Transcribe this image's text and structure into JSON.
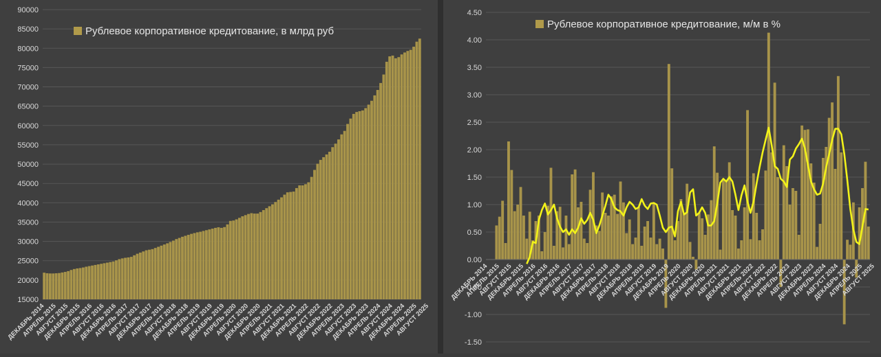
{
  "charts": [
    {
      "type": "bar",
      "title": "",
      "legend": {
        "label": "Рублевое корпоративное кредитование, в млрд руб",
        "placement": "top-center",
        "color": "#b09a4a"
      },
      "bar_color": "#a8944a",
      "xlabel": "",
      "ylabel": "",
      "ylim": [
        15000,
        90000
      ],
      "ystep": 5000,
      "grid": true,
      "start": "2014-12",
      "tick_labels": [
        "ДЕКАБРЬ 2014",
        "АПРЕЛЬ 2015",
        "АВГУСТ 2015",
        "ДЕКАБРЬ 2015",
        "АПРЕЛЬ 2016",
        "АВГУСТ 2016",
        "ДЕКАБРЬ 2016",
        "АПРЕЛЬ 2017",
        "АВГУСТ 2017",
        "ДЕКАБРЬ 2017",
        "АПРЕЛЬ 2018",
        "АВГУСТ 2018",
        "ДЕКАБРЬ 2018",
        "АПРЕЛЬ 2019",
        "АВГУСТ 2019",
        "ДЕКАБРЬ 2019",
        "АПРЕЛЬ 2020",
        "АВГУСТ 2020",
        "ДЕКАБРЬ 2020",
        "АПРЕЛЬ 2021",
        "АВГУСТ 2021",
        "ДЕКАБРЬ 2021",
        "АПРЕЛЬ 2022",
        "АВГУСТ 2022",
        "ДЕКАБРЬ 2022",
        "АПРЕЛЬ 2023",
        "АВГУСТ 2023",
        "ДЕКАБРЬ 2023",
        "АПРЕЛЬ 2024",
        "АВГУСТ 2024",
        "ДЕКАБРЬ 2024",
        "АПРЕЛЬ 2025",
        "АВГУСТ 2025"
      ],
      "values": [
        21900,
        21750,
        21700,
        21700,
        21750,
        21800,
        21950,
        22100,
        22300,
        22600,
        22850,
        23000,
        23100,
        23250,
        23450,
        23600,
        23750,
        23900,
        24050,
        24200,
        24350,
        24500,
        24650,
        24800,
        25100,
        25400,
        25600,
        25750,
        25850,
        26000,
        26400,
        26800,
        27100,
        27400,
        27700,
        27850,
        28000,
        28300,
        28600,
        28900,
        29200,
        29500,
        29850,
        30200,
        30600,
        30900,
        31200,
        31450,
        31700,
        31950,
        32150,
        32350,
        32500,
        32700,
        32900,
        33100,
        33300,
        33500,
        33650,
        33500,
        33700,
        34400,
        35300,
        35400,
        35700,
        36100,
        36500,
        36800,
        37100,
        37300,
        37200,
        37200,
        37600,
        38100,
        38600,
        39100,
        39600,
        40200,
        40800,
        41400,
        42100,
        42700,
        42800,
        42900,
        43800,
        44500,
        44500,
        44800,
        45300,
        46700,
        48500,
        50100,
        51100,
        51800,
        52500,
        53200,
        54400,
        55300,
        56400,
        57700,
        58600,
        60400,
        61800,
        63000,
        63500,
        63700,
        63900,
        64500,
        65400,
        66400,
        67800,
        69200,
        71000,
        73200,
        76500,
        77900,
        78100,
        77400,
        77700,
        78400,
        78900,
        79300,
        79600,
        80400,
        81700,
        82500
      ]
    },
    {
      "type": "bar+line",
      "title": "",
      "legend": {
        "label": "Рублевое корпоративное кредитование, м/м в %",
        "placement": "top-center",
        "color": "#b09a4a"
      },
      "bar_color": "#a8944a",
      "line_color": "#f2f21a",
      "xlabel": "",
      "ylabel": "",
      "ylim": [
        -1.5,
        4.5
      ],
      "ystep": 0.5,
      "grid": true,
      "start": "2014-12",
      "tick_labels": [
        "ДЕКАБРЬ 2014",
        "АПРЕЛЬ 2015",
        "АВГУСТ 2015",
        "ДЕКАБРЬ 2015",
        "АПРЕЛЬ 2016",
        "АВГУСТ 2016",
        "ДЕКАБРЬ 2016",
        "АПРЕЛЬ 2017",
        "АВГУСТ 2017",
        "ДЕКАБРЬ 2017",
        "АПРЕЛЬ 2018",
        "АВГУСТ 2018",
        "ДЕКАБРЬ 2018",
        "АПРЕЛЬ 2019",
        "АВГУСТ 2019",
        "ДЕКАБРЬ 2019",
        "АПРЕЛЬ 2020",
        "АВГУСТ 2020",
        "ДЕКАБРЬ 2020",
        "АПРЕЛЬ 2021",
        "АВГУСТ 2021",
        "ДЕКАБРЬ 2021",
        "АПРЕЛЬ 2022",
        "АВГУСТ 2022",
        "ДЕКАБРЬ 2022",
        "АПРЕЛЬ 2023",
        "АВГУСТ 2023",
        "ДЕКАБРЬ 2023",
        "АПРЕЛЬ 2024",
        "АВГУСТ 2024",
        "ДЕКАБРЬ 2024",
        "АПРЕЛЬ 2025",
        "АВГУСТ 2025"
      ],
      "bars": [
        0,
        0,
        0,
        0.62,
        0.78,
        1.07,
        0.3,
        2.15,
        1.63,
        0.88,
        1.0,
        1.32,
        0.8,
        0.38,
        0.87,
        0.35,
        0.7,
        0.8,
        0.15,
        0.5,
        0.98,
        1.67,
        0.25,
        0.88,
        0.96,
        0.22,
        0.8,
        0.28,
        1.55,
        1.64,
        0.95,
        1.05,
        0.38,
        0.3,
        1.27,
        1.59,
        0.62,
        0.52,
        1.22,
        0.85,
        0.8,
        1.15,
        1.18,
        0.83,
        1.42,
        1.04,
        0.48,
        0.73,
        0.28,
        0.4,
        0.95,
        0.25,
        0.6,
        0.7,
        0.4,
        1.03,
        0.28,
        0.38,
        0.2,
        -0.88,
        3.56,
        1.66,
        0.35,
        0.7,
        1.1,
        0.82,
        1.38,
        0.32,
        0.05,
        -0.18,
        0.85,
        0.75,
        0.45,
        0.82,
        1.08,
        2.06,
        1.58,
        0.18,
        1.45,
        1.44,
        1.77,
        0.9,
        0.8,
        0.2,
        0.35,
        0.95,
        2.72,
        0.37,
        1.57,
        0.85,
        0.35,
        0.55,
        1.62,
        4.13,
        1.95,
        3.22,
        1.5,
        -0.5,
        2.08,
        1.7,
        1.0,
        1.3,
        1.25,
        0.45,
        2.44,
        2.36,
        2.37,
        1.75,
        1.4,
        0.23,
        0.65,
        1.85,
        2.05,
        2.58,
        2.86,
        1.65,
        3.34,
        1.95,
        -1.18,
        0.36,
        0.27,
        1.04,
        -0.33,
        0.95,
        1.3,
        1.78,
        0.6
      ],
      "trend": [
        -0.08,
        0.05,
        0.32,
        0.3,
        0.72,
        0.9,
        1.02,
        0.82,
        0.9,
        1.0,
        0.75,
        0.6,
        0.5,
        0.55,
        0.45,
        0.55,
        0.48,
        0.58,
        0.75,
        0.65,
        0.72,
        0.85,
        0.72,
        0.48,
        0.62,
        0.8,
        0.98,
        1.18,
        1.1,
        0.95,
        0.9,
        0.88,
        0.8,
        0.95,
        1.05,
        1.0,
        0.92,
        0.95,
        1.1,
        0.98,
        0.92,
        1.02,
        1.03,
        1.0,
        0.8,
        0.58,
        0.5,
        0.58,
        0.6,
        0.42,
        0.88,
        1.05,
        0.82,
        0.86,
        1.22,
        1.28,
        0.8,
        0.85,
        0.95,
        0.85,
        0.62,
        0.62,
        0.7,
        1.02,
        1.4,
        1.47,
        1.42,
        1.5,
        1.42,
        1.18,
        0.9,
        1.17,
        1.35,
        1.05,
        0.85,
        1.05,
        1.38,
        1.68,
        1.95,
        2.18,
        2.4,
        2.08,
        1.7,
        1.65,
        1.47,
        1.42,
        1.32,
        1.82,
        1.88,
        2.02,
        2.1,
        2.2,
        2.02,
        1.72,
        1.42,
        1.28,
        1.18,
        1.2,
        1.38,
        1.68,
        1.92,
        2.18,
        2.38,
        2.38,
        2.28,
        1.92,
        1.45,
        0.92,
        0.55,
        0.32,
        0.28,
        0.6,
        0.92,
        0.91
      ]
    }
  ]
}
